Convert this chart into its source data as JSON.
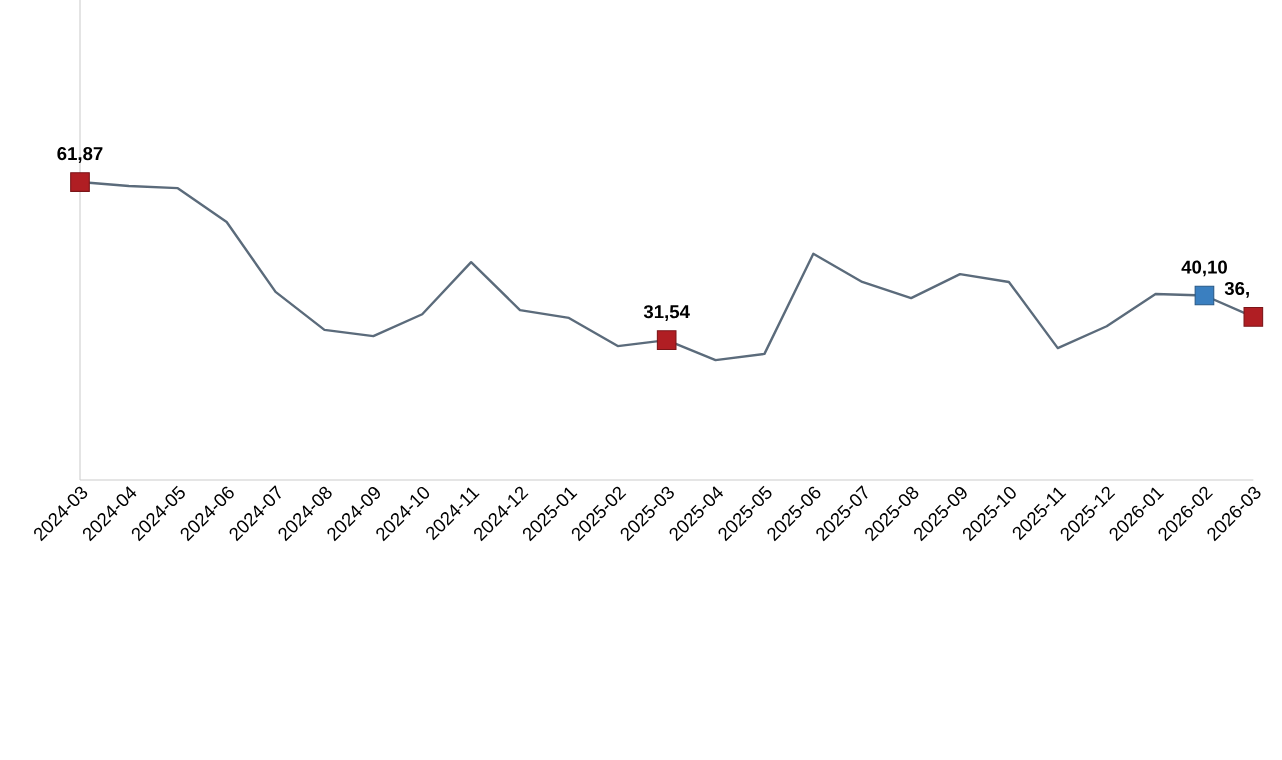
{
  "chart_data": {
    "type": "line",
    "categories": [
      "2024-03",
      "2024-04",
      "2024-05",
      "2024-06",
      "2024-07",
      "2024-08",
      "2024-09",
      "2024-10",
      "2024-11",
      "2024-12",
      "2025-01",
      "2025-02",
      "2025-03",
      "2025-04",
      "2025-05",
      "2025-06",
      "2025-07",
      "2025-08",
      "2025-09",
      "2025-10",
      "2025-11",
      "2025-12",
      "2026-01",
      "2026-02",
      "2026-03"
    ],
    "series": [
      {
        "color": "#5b6b7b",
        "marker": "none",
        "values": [
          61.87,
          61.1,
          60.7,
          54.2,
          40.8,
          33.5,
          32.3,
          36.5,
          46.5,
          37.3,
          35.8,
          30.4,
          31.54,
          27.7,
          28.9,
          48.1,
          42.7,
          39.6,
          44.2,
          42.7,
          30.0,
          34.2,
          40.4,
          40.1,
          36
        ]
      },
      {
        "type": "scatter",
        "color": "#b01e23",
        "marker": "square",
        "values": [
          61.87,
          null,
          null,
          null,
          null,
          null,
          null,
          null,
          null,
          null,
          null,
          null,
          31.54,
          null,
          null,
          null,
          null,
          null,
          null,
          null,
          null,
          null,
          null,
          null,
          36
        ],
        "value_labels": [
          "61,87",
          null,
          null,
          null,
          null,
          null,
          null,
          null,
          null,
          null,
          null,
          null,
          "31,54",
          null,
          null,
          null,
          null,
          null,
          null,
          null,
          null,
          null,
          null,
          null,
          "36,"
        ]
      },
      {
        "type": "scatter",
        "color": "#3a7fc0",
        "marker": "square",
        "values": [
          null,
          null,
          null,
          null,
          null,
          null,
          null,
          null,
          null,
          null,
          null,
          null,
          null,
          null,
          null,
          null,
          null,
          null,
          null,
          null,
          null,
          null,
          null,
          40.1,
          null
        ],
        "value_labels": [
          null,
          null,
          null,
          null,
          null,
          null,
          null,
          null,
          null,
          null,
          null,
          null,
          null,
          null,
          null,
          null,
          null,
          null,
          null,
          null,
          null,
          null,
          null,
          "40,10",
          null
        ]
      }
    ],
    "ylim": [
      4.7,
      96.8
    ],
    "tick_labels": "x"
  }
}
